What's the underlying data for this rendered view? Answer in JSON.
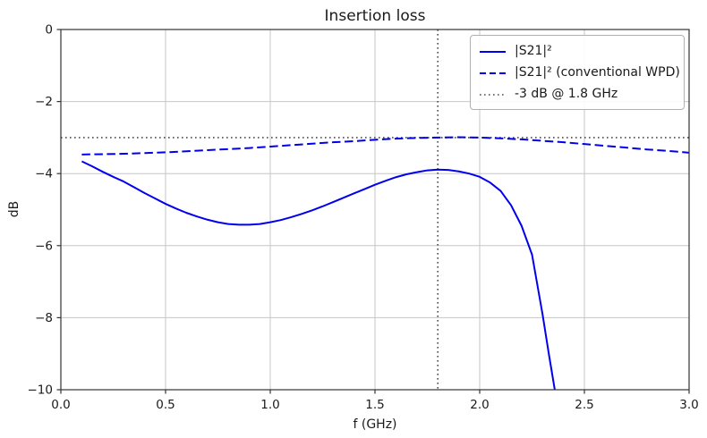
{
  "figure": {
    "title": "Insertion loss",
    "xlabel": "f (GHz)",
    "ylabel": "dB"
  },
  "chart_data": {
    "type": "line",
    "title": "Insertion loss",
    "xlabel": "f (GHz)",
    "ylabel": "dB",
    "xlim": [
      0.0,
      3.0
    ],
    "ylim": [
      -10,
      0
    ],
    "grid": true,
    "legend_position": "upper right",
    "xticks": {
      "values": [
        0,
        0.5,
        1.0,
        1.5,
        2.0,
        2.5,
        3.0
      ],
      "labels": [
        "0.0",
        "0.5",
        "1.0",
        "1.5",
        "2.0",
        "2.5",
        "3.0"
      ]
    },
    "yticks": {
      "values": [
        0,
        -2,
        -4,
        -6,
        -8,
        -10
      ],
      "labels": [
        "0",
        "−2",
        "−4",
        "−6",
        "−8",
        "−10"
      ]
    },
    "colors": {
      "series": "#0000ee",
      "reference": "#4d4d4d",
      "grid": "#c6c6c6",
      "axis": "#333333"
    },
    "series": [
      {
        "name": "|S21|²",
        "style": "solid",
        "color": "#0000ee",
        "x": [
          0.1,
          0.15,
          0.2,
          0.25,
          0.3,
          0.35,
          0.4,
          0.45,
          0.5,
          0.55,
          0.6,
          0.65,
          0.7,
          0.75,
          0.8,
          0.85,
          0.9,
          0.95,
          1.0,
          1.05,
          1.1,
          1.15,
          1.2,
          1.25,
          1.3,
          1.35,
          1.4,
          1.45,
          1.5,
          1.55,
          1.6,
          1.65,
          1.7,
          1.75,
          1.8,
          1.85,
          1.9,
          1.95,
          2.0,
          2.05,
          2.1,
          2.15,
          2.2,
          2.25,
          2.3,
          2.33,
          2.36,
          2.38
        ],
        "y": [
          -3.66,
          -3.8,
          -3.95,
          -4.09,
          -4.22,
          -4.38,
          -4.54,
          -4.69,
          -4.84,
          -4.97,
          -5.09,
          -5.19,
          -5.28,
          -5.35,
          -5.4,
          -5.42,
          -5.42,
          -5.4,
          -5.35,
          -5.29,
          -5.21,
          -5.12,
          -5.02,
          -4.91,
          -4.79,
          -4.67,
          -4.55,
          -4.43,
          -4.31,
          -4.2,
          -4.1,
          -4.02,
          -3.96,
          -3.91,
          -3.89,
          -3.9,
          -3.94,
          -4.0,
          -4.09,
          -4.25,
          -4.48,
          -4.88,
          -5.45,
          -6.25,
          -7.9,
          -9.0,
          -10.05,
          -10.8
        ]
      },
      {
        "name": "|S21|² (conventional WPD)",
        "style": "dashed",
        "color": "#0000ee",
        "x": [
          0.1,
          0.2,
          0.3,
          0.4,
          0.5,
          0.6,
          0.7,
          0.8,
          0.9,
          1.0,
          1.1,
          1.2,
          1.3,
          1.4,
          1.5,
          1.6,
          1.7,
          1.8,
          1.9,
          2.0,
          2.1,
          2.2,
          2.3,
          2.4,
          2.5,
          2.6,
          2.7,
          2.8,
          2.9,
          3.0
        ],
        "y": [
          -3.47,
          -3.46,
          -3.45,
          -3.43,
          -3.41,
          -3.38,
          -3.35,
          -3.32,
          -3.29,
          -3.25,
          -3.21,
          -3.17,
          -3.13,
          -3.1,
          -3.06,
          -3.03,
          -3.01,
          -3.0,
          -2.99,
          -3.0,
          -3.02,
          -3.05,
          -3.09,
          -3.13,
          -3.18,
          -3.23,
          -3.28,
          -3.33,
          -3.37,
          -3.42
        ]
      }
    ],
    "reference_lines": [
      {
        "label": "-3 dB @ 1.8 GHz",
        "orientation": "horizontal",
        "value": -3,
        "style": "dotted",
        "color": "#4d4d4d"
      },
      {
        "label": "-3 dB @ 1.8 GHz",
        "orientation": "vertical",
        "value": 1.8,
        "style": "dotted",
        "color": "#4d4d4d"
      }
    ],
    "legend": {
      "entries": [
        {
          "label": "|S21|²",
          "style": "solid",
          "color": "#0000ee"
        },
        {
          "label": "|S21|² (conventional WPD)",
          "style": "dashed",
          "color": "#0000ee"
        },
        {
          "label": "-3 dB @ 1.8 GHz",
          "style": "dotted",
          "color": "#4d4d4d"
        }
      ]
    }
  }
}
